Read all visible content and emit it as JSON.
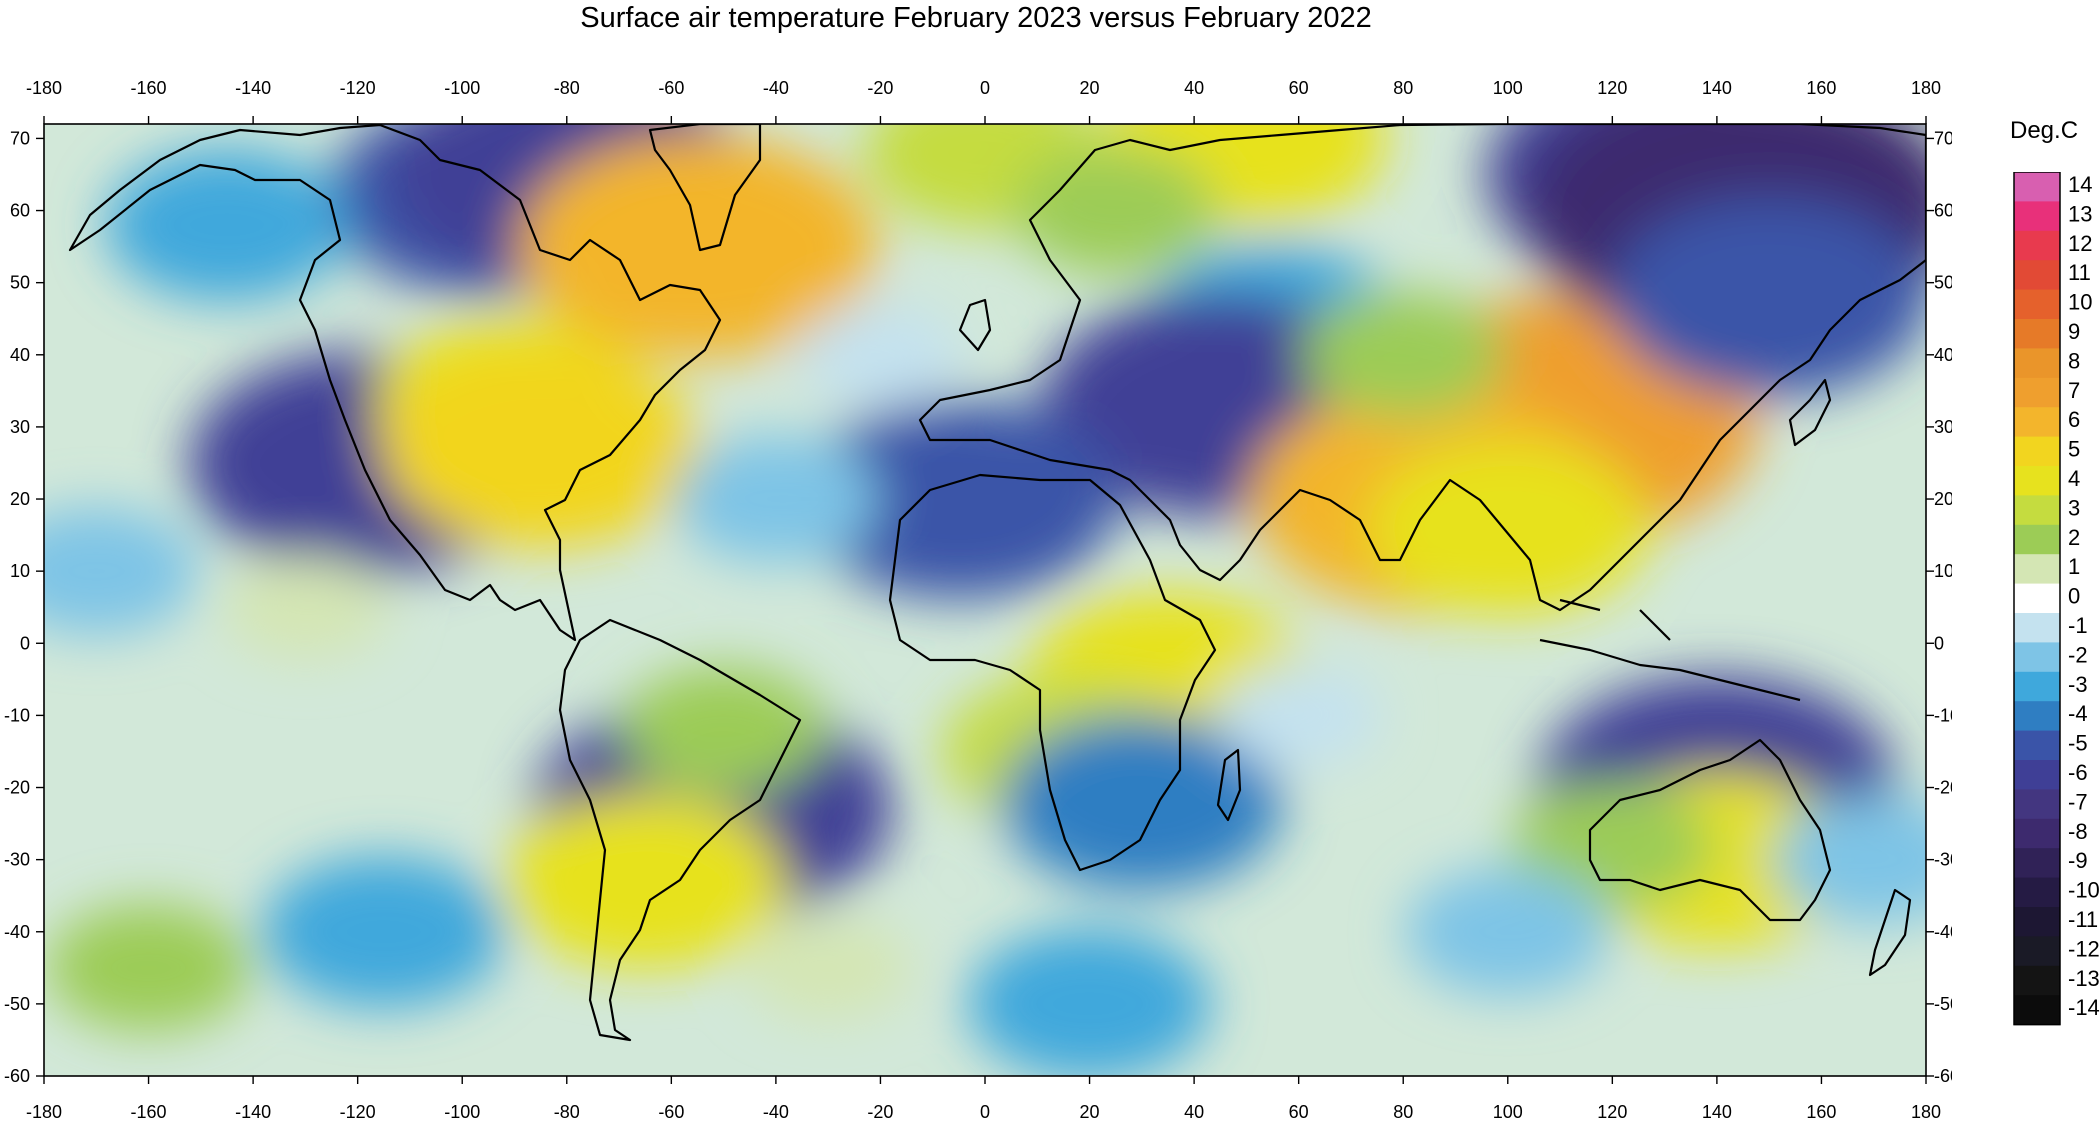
{
  "title": "Surface air temperature February 2023 versus February 2022",
  "legend": {
    "title": "Deg.C",
    "levels": [
      14,
      13,
      12,
      11,
      10,
      9,
      8,
      7,
      6,
      5,
      4,
      3,
      2,
      1,
      0,
      -1,
      -2,
      -3,
      -4,
      -5,
      -6,
      -7,
      -8,
      -9,
      -10,
      -11,
      -12,
      -13,
      -14
    ],
    "colors": [
      "#d85fb0",
      "#e8307a",
      "#e83a4e",
      "#e24a35",
      "#e5612c",
      "#e67a28",
      "#ea952a",
      "#ef9f2e",
      "#f3b52c",
      "#f2d51f",
      "#e7e21e",
      "#c5dc3f",
      "#9ccc56",
      "#d4e6b4",
      "#ffffff",
      "#c4e2ef",
      "#7ec4e6",
      "#3fa8dc",
      "#2f7ec2",
      "#3a54a8",
      "#3f3f96",
      "#433680",
      "#3d2a6e",
      "#302257",
      "#251b44",
      "#1d1733",
      "#1a1a26",
      "#141414",
      "#0c0c0c"
    ]
  },
  "chart_data": {
    "type": "heatmap",
    "title": "Surface air temperature February 2023 versus February 2022",
    "xlim": [
      -180,
      180
    ],
    "ylim": [
      -60,
      72
    ],
    "x_ticks": [
      -180,
      -160,
      -140,
      -120,
      -100,
      -80,
      -60,
      -40,
      -20,
      0,
      20,
      40,
      60,
      80,
      100,
      120,
      140,
      160,
      180
    ],
    "y_ticks": [
      70,
      60,
      50,
      40,
      30,
      20,
      10,
      0,
      -10,
      -20,
      -30,
      -40,
      -50,
      -60
    ],
    "colorbar_label": "Deg.C",
    "colorbar_range": [
      -14,
      14
    ],
    "anomaly_regions": [
      {
        "lon": -95,
        "lat": 62,
        "value": -5
      },
      {
        "lon": -80,
        "lat": 65,
        "value": -6
      },
      {
        "lon": -145,
        "lat": 58,
        "value": -3
      },
      {
        "lon": -118,
        "lat": 25,
        "value": -6
      },
      {
        "lon": -90,
        "lat": 33,
        "value": 4
      },
      {
        "lon": -85,
        "lat": 27,
        "value": 5
      },
      {
        "lon": -55,
        "lat": 55,
        "value": 6
      },
      {
        "lon": 0,
        "lat": 68,
        "value": 3
      },
      {
        "lon": 50,
        "lat": 70,
        "value": 4
      },
      {
        "lon": 25,
        "lat": 60,
        "value": 2
      },
      {
        "lon": 55,
        "lat": 45,
        "value": -3
      },
      {
        "lon": 45,
        "lat": 33,
        "value": -6
      },
      {
        "lon": -5,
        "lat": 20,
        "value": -5
      },
      {
        "lon": 110,
        "lat": 31,
        "value": 7
      },
      {
        "lon": 85,
        "lat": 20,
        "value": 6
      },
      {
        "lon": 100,
        "lat": 16,
        "value": 4
      },
      {
        "lon": 80,
        "lat": 40,
        "value": 2
      },
      {
        "lon": 130,
        "lat": 65,
        "value": -6
      },
      {
        "lon": 145,
        "lat": 60,
        "value": -8
      },
      {
        "lon": 150,
        "lat": 48,
        "value": -5
      },
      {
        "lon": 140,
        "lat": -20,
        "value": -6
      },
      {
        "lon": 140,
        "lat": -30,
        "value": 4
      },
      {
        "lon": 120,
        "lat": -28,
        "value": 2
      },
      {
        "lon": 35,
        "lat": -5,
        "value": 4
      },
      {
        "lon": 15,
        "lat": -15,
        "value": 3
      },
      {
        "lon": 30,
        "lat": -22,
        "value": -4
      },
      {
        "lon": -52,
        "lat": -23,
        "value": -6
      },
      {
        "lon": -65,
        "lat": -33,
        "value": 4
      },
      {
        "lon": -50,
        "lat": -12,
        "value": 2
      },
      {
        "lon": -115,
        "lat": -40,
        "value": -3
      },
      {
        "lon": -160,
        "lat": -45,
        "value": 2
      },
      {
        "lon": -40,
        "lat": 20,
        "value": -2
      },
      {
        "lon": -30,
        "lat": -45,
        "value": 1
      },
      {
        "lon": 20,
        "lat": -50,
        "value": -3
      },
      {
        "lon": 170,
        "lat": -30,
        "value": -2
      },
      {
        "lon": -170,
        "lat": 10,
        "value": -2
      },
      {
        "lon": 60,
        "lat": -10,
        "value": -1
      },
      {
        "lon": 100,
        "lat": -40,
        "value": -2
      },
      {
        "lon": -130,
        "lat": 5,
        "value": 1
      },
      {
        "lon": -20,
        "lat": 40,
        "value": -1
      }
    ]
  }
}
